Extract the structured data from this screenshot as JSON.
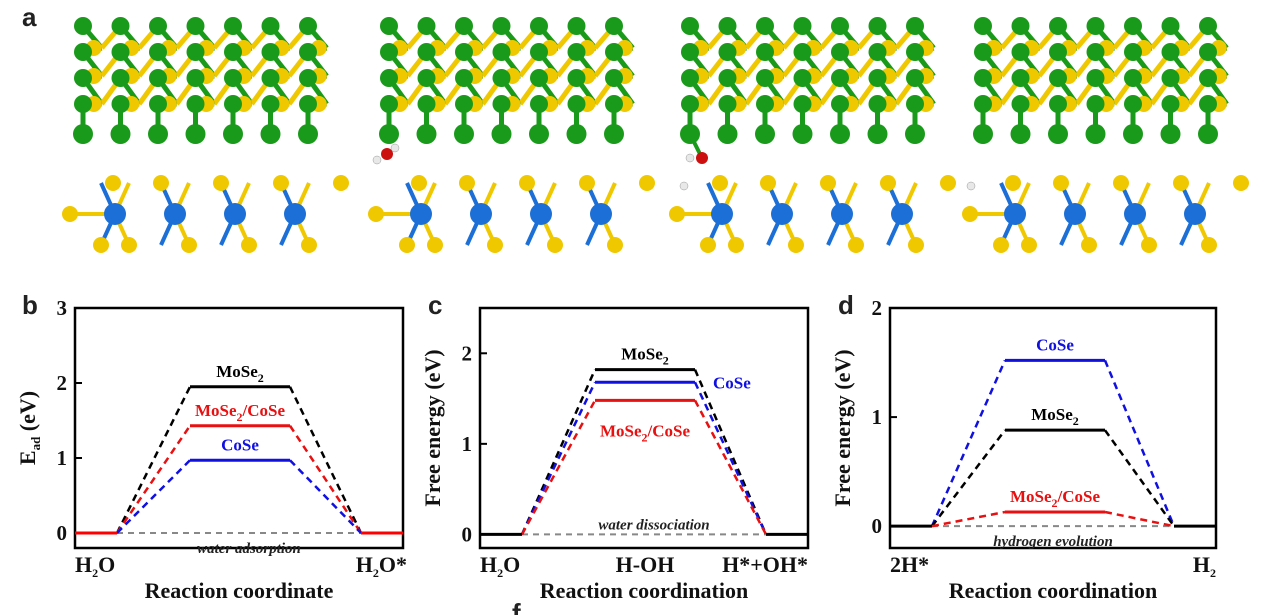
{
  "panel_labels": {
    "a": "a",
    "b": "b",
    "c": "c",
    "d": "d",
    "f": "f"
  },
  "colors": {
    "Se": "#f0c800",
    "Co_Se_layer": "#1a9a1a",
    "Mo": "#1b6fd6",
    "O": "#cc1010",
    "H": "#e8e8e8",
    "MoSe2": "#000000",
    "CoSe": "#1010e0",
    "MoSe2_CoSe": "#e81010",
    "Ref": "#ff0000"
  },
  "chart_data": [
    {
      "id": "b",
      "type": "line",
      "title": "",
      "xlabel": "Reaction coordinate",
      "ylabel": "E",
      "ylabel_sub": "ad",
      "ylabel_unit": " (eV)",
      "ylim": [
        -0.2,
        3
      ],
      "yticks": [
        "0",
        "1",
        "2",
        "3"
      ],
      "state_labels": [
        {
          "text": "H",
          "sub": "2",
          "tail": "O"
        },
        {
          "text": "H",
          "sub": "2",
          "tail": "O*"
        }
      ],
      "annotation": "water adsorption",
      "series": [
        {
          "name": "MoSe",
          "sub": "2",
          "tail": "",
          "color": "#000000",
          "values": [
            0,
            1.95,
            0
          ]
        },
        {
          "name": "MoSe",
          "sub": "2",
          "tail": "/CoSe",
          "color": "#e81010",
          "values": [
            0,
            1.43,
            0
          ]
        },
        {
          "name": "CoSe",
          "sub": "",
          "tail": "",
          "color": "#1010e0",
          "values": [
            0,
            0.97,
            0
          ]
        }
      ],
      "reference": {
        "color": "#ff0000",
        "value": 0
      }
    },
    {
      "id": "c",
      "type": "line",
      "xlabel": "Reaction coordination",
      "ylabel": "Free energy (eV)",
      "ylim": [
        -0.15,
        2.5
      ],
      "yticks": [
        "0",
        "1",
        "2"
      ],
      "state_labels": [
        {
          "text": "H",
          "sub": "2",
          "tail": "O"
        },
        {
          "text": "H-OH",
          "sub": "",
          "tail": ""
        },
        {
          "text": "H*+OH*",
          "sub": "",
          "tail": ""
        }
      ],
      "annotation": "water dissociation",
      "series": [
        {
          "name": "MoSe",
          "sub": "2",
          "tail": "",
          "color": "#000000",
          "values": [
            0,
            1.82,
            0
          ]
        },
        {
          "name": "CoSe",
          "sub": "",
          "tail": "",
          "color": "#1010e0",
          "values": [
            0,
            1.68,
            0
          ]
        },
        {
          "name": "MoSe",
          "sub": "2",
          "tail": "/CoSe",
          "color": "#e81010",
          "values": [
            0,
            1.48,
            0
          ]
        }
      ],
      "reference": {
        "color": "#000000",
        "value": 0
      }
    },
    {
      "id": "d",
      "type": "line",
      "xlabel": "Reaction coordination",
      "ylabel": "Free energy (eV)",
      "ylim": [
        -0.2,
        2
      ],
      "yticks": [
        "0",
        "1",
        "2"
      ],
      "state_labels": [
        {
          "text": "2H*",
          "sub": "",
          "tail": ""
        },
        {
          "text": "H",
          "sub": "2",
          "tail": ""
        }
      ],
      "annotation": "hydrogen evolution",
      "series": [
        {
          "name": "CoSe",
          "sub": "",
          "tail": "",
          "color": "#1010e0",
          "values": [
            0,
            1.52,
            0
          ]
        },
        {
          "name": "MoSe",
          "sub": "2",
          "tail": "",
          "color": "#000000",
          "values": [
            0,
            0.88,
            0
          ]
        },
        {
          "name": "MoSe",
          "sub": "2",
          "tail": "/CoSe",
          "color": "#e81010",
          "values": [
            0,
            0.13,
            0
          ]
        }
      ],
      "reference": {
        "color": "#000000",
        "value": 0
      }
    }
  ]
}
